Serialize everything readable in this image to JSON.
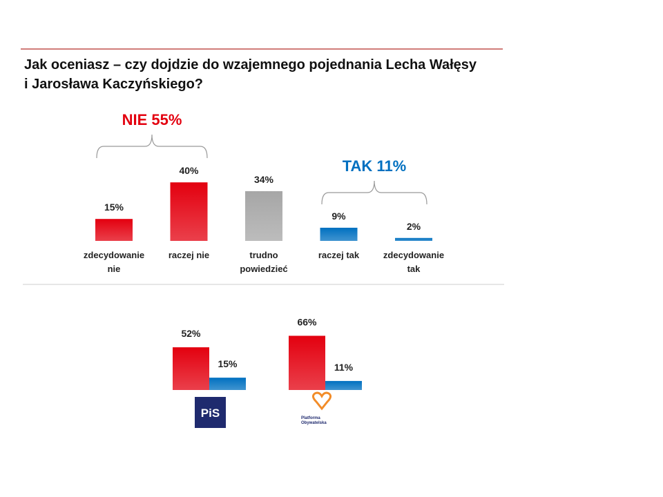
{
  "chart_data": [
    {
      "type": "bar",
      "title": "Jak oceniasz – czy dojdzie do wzajemnego pojednania Lecha Wałęsy\ni Jarosława Kaczyńskiego?",
      "categories": [
        "zdecydowanie\nnie",
        "raczej nie",
        "trudno\npowiedzieć",
        "raczej tak",
        "zdecydowanie\ntak"
      ],
      "values": [
        15,
        40,
        34,
        9,
        2
      ],
      "value_labels": [
        "15%",
        "40%",
        "34%",
        "9%",
        "2%"
      ],
      "colors": [
        "#e3000f",
        "#e3000f",
        "#a6a6a6",
        "#0070c0",
        "#0070c0"
      ],
      "annotations": [
        {
          "text": "NIE 55%",
          "color": "#e3000f"
        },
        {
          "text": "TAK 11%",
          "color": "#0070c0"
        }
      ]
    },
    {
      "type": "grouped-bar",
      "categories": [
        "PiS",
        "Platforma\nObywatelska"
      ],
      "series": [
        {
          "color": "#e3000f",
          "values": [
            52,
            66
          ],
          "value_labels": [
            "52%",
            "66%"
          ]
        },
        {
          "color": "#0070c0",
          "values": [
            15,
            11
          ],
          "value_labels": [
            "15%",
            "11%"
          ]
        }
      ]
    }
  ]
}
